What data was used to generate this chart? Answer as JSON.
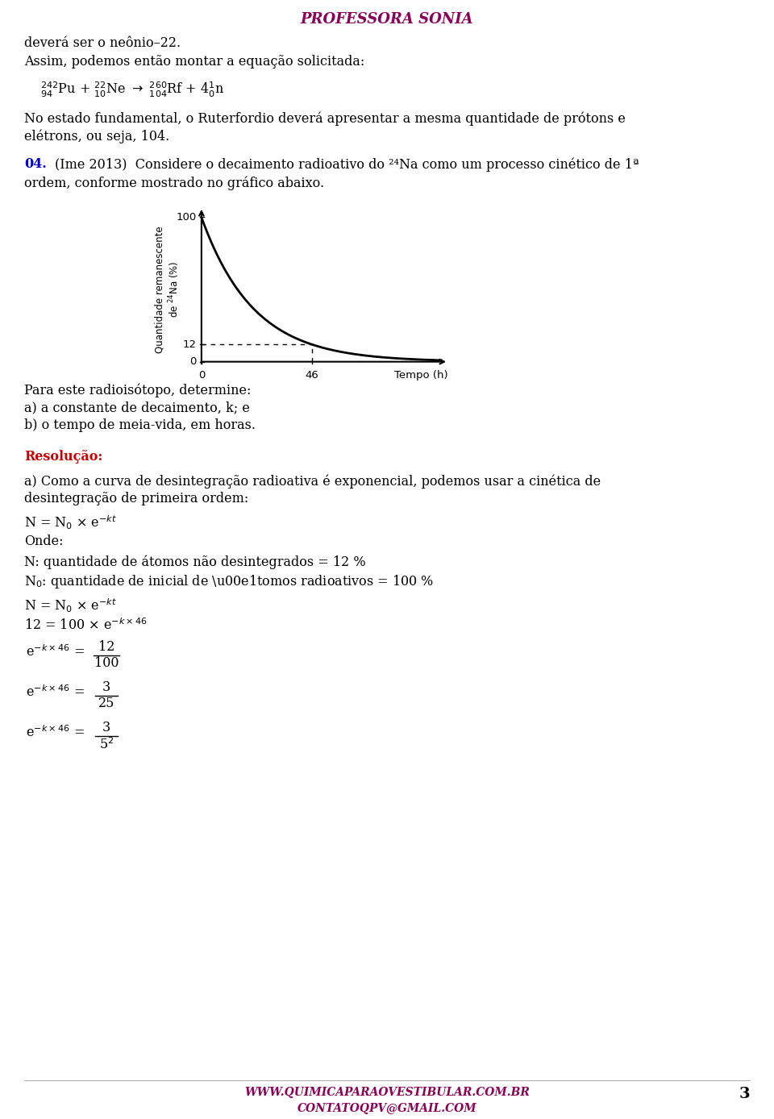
{
  "page_bg": "#ffffff",
  "header_text": "PROFESSORA SONIA",
  "header_color": "#8B0057",
  "footer_website": "WWW.QUIMICAPARAOVESTIBULAR.COM.BR",
  "footer_email": "CONTATOQPV@GMAIL.COM",
  "footer_color": "#8B0057",
  "page_number": "3",
  "text_color": "#000000",
  "blue_color": "#0000CD",
  "red_bold_color": "#CC0000",
  "line1": "deverá ser o neônio–22.",
  "line2": "Assim, podemos então montar a equação solicitada:",
  "line3a": "No estado fundamental, o Ruterfordio deverá apresentar a mesma quantidade de prótons e",
  "line3b": "elétrons, ou seja, 104.",
  "q04_label": "04.",
  "q04_text": "(Ime 2013)  Considere o decaimento radioativo do ²⁴Na como um processo cinético de 1ª",
  "q04_text2": "ordem, conforme mostrado no gráfico abaixo.",
  "para_line": "Para este radioisótopo, determine:",
  "para_a": "a) a constante de decaimento, k; e",
  "para_b": "b) o tempo de meia-vida, em horas.",
  "resolucao_label": "Resolução:",
  "res_a": "a) Como a curva de desintegração radioativa é exponencial, podemos usar a cinética de",
  "res_a2": "desintegração de primeira ordem:",
  "onde": "Onde:",
  "N_def": "N: quantidade de átomos não desintegrados = 12 %",
  "N0_def": "N₀: quantidade de inicial de átomos radioativos = 100 %"
}
